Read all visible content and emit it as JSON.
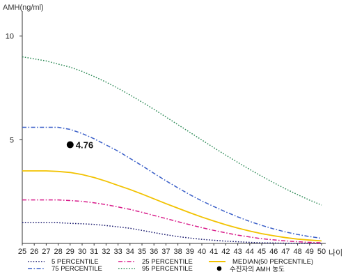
{
  "chart_data": {
    "type": "line",
    "ylabel": "AMH(ng/ml)",
    "xlabel": "나이",
    "x": [
      25,
      26,
      27,
      28,
      29,
      30,
      31,
      32,
      33,
      34,
      35,
      36,
      37,
      38,
      39,
      40,
      41,
      42,
      43,
      44,
      45,
      46,
      47,
      48,
      49,
      50
    ],
    "xlim": [
      25,
      50
    ],
    "ylim": [
      0,
      11
    ],
    "yticks": [
      5,
      10
    ],
    "grid": false,
    "legend_placement": "bottom",
    "series": [
      {
        "name": "5 PERCENTILE",
        "color": "#1a1a6e",
        "style": "dotted",
        "values": [
          1.0,
          1.0,
          1.0,
          1.0,
          0.97,
          0.95,
          0.92,
          0.86,
          0.8,
          0.73,
          0.63,
          0.52,
          0.42,
          0.33,
          0.26,
          0.2,
          0.15,
          0.11,
          0.08,
          0.05,
          0.03,
          0.02,
          0.01,
          0.0,
          0.0,
          0.0
        ]
      },
      {
        "name": "75 PERCENTILE",
        "color": "#3a5fc8",
        "style": "dashdot",
        "values": [
          5.6,
          5.6,
          5.6,
          5.6,
          5.5,
          5.3,
          5.05,
          4.75,
          4.45,
          4.1,
          3.75,
          3.38,
          3.02,
          2.68,
          2.35,
          2.05,
          1.78,
          1.52,
          1.28,
          1.06,
          0.87,
          0.7,
          0.55,
          0.43,
          0.33,
          0.25
        ]
      },
      {
        "name": "25 PERCENTILE",
        "color": "#d81b8a",
        "style": "dashdot",
        "values": [
          2.1,
          2.1,
          2.1,
          2.1,
          2.07,
          2.03,
          1.96,
          1.87,
          1.76,
          1.64,
          1.5,
          1.35,
          1.2,
          1.05,
          0.9,
          0.76,
          0.63,
          0.51,
          0.4,
          0.31,
          0.23,
          0.17,
          0.12,
          0.08,
          0.05,
          0.03
        ]
      },
      {
        "name": "95 PERCENTILE",
        "color": "#2e8b57",
        "style": "dotted",
        "values": [
          9.0,
          8.9,
          8.8,
          8.65,
          8.5,
          8.3,
          8.05,
          7.78,
          7.48,
          7.16,
          6.82,
          6.47,
          6.1,
          5.73,
          5.36,
          4.99,
          4.62,
          4.26,
          3.91,
          3.57,
          3.24,
          2.93,
          2.63,
          2.35,
          2.09,
          1.85
        ]
      },
      {
        "name": "MEDIAN(50 PERCENTILE)",
        "color": "#f2c200",
        "style": "solid",
        "values": [
          3.5,
          3.5,
          3.5,
          3.47,
          3.42,
          3.32,
          3.18,
          3.0,
          2.8,
          2.6,
          2.38,
          2.15,
          1.92,
          1.7,
          1.48,
          1.27,
          1.08,
          0.9,
          0.74,
          0.6,
          0.47,
          0.37,
          0.28,
          0.21,
          0.16,
          0.12
        ]
      }
    ],
    "points": [
      {
        "name": "수진자의 AMH 농도",
        "x": 29,
        "y": 4.76,
        "label": "4.76",
        "color": "#000000"
      }
    ]
  }
}
